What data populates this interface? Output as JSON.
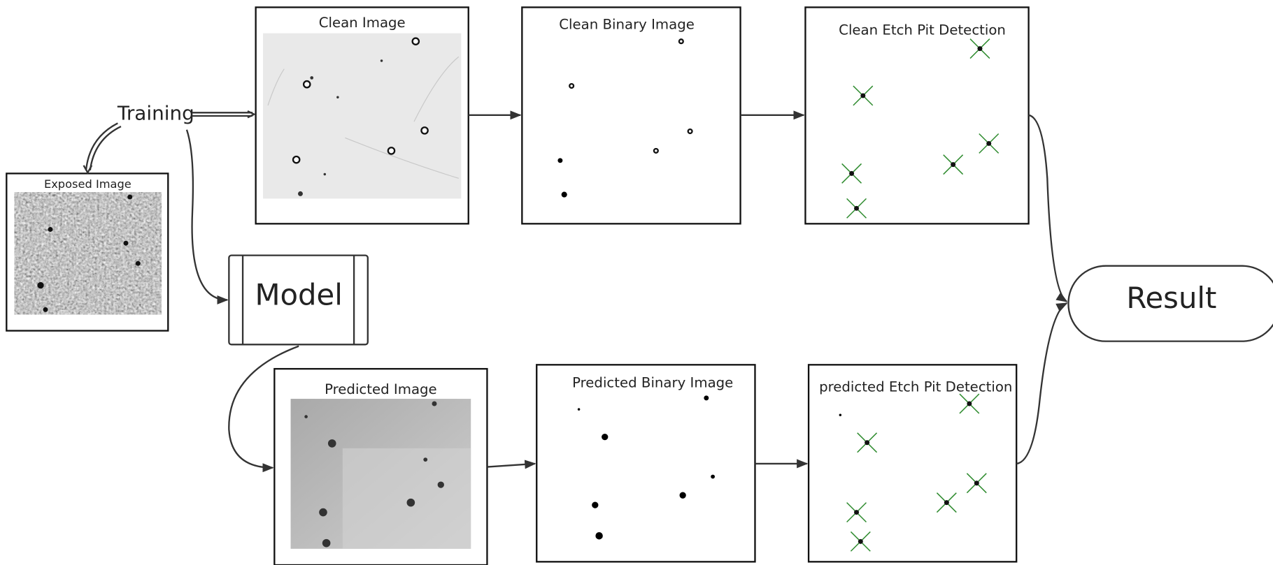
{
  "nodes": [
    {
      "label": "Training"
    },
    {
      "label": "Exposed Image"
    },
    {
      "label": "Clean Image"
    },
    {
      "label": "Clean Binary Image"
    },
    {
      "label": "Clean Etch Pit Detection"
    },
    {
      "label": "Model"
    },
    {
      "label": "Predicted Image"
    },
    {
      "label": "Predicted Binary Image"
    },
    {
      "label": "predicted Etch Pit Detection"
    },
    {
      "label": "Result"
    }
  ]
}
